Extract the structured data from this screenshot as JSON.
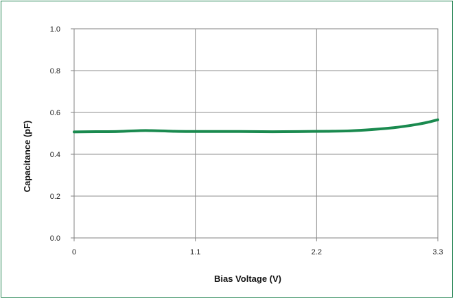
{
  "chart_data": {
    "type": "line",
    "title": "",
    "xlabel": "Bias Voltage (V)",
    "ylabel": "Capacitance (pF)",
    "xlim": [
      0,
      3.3
    ],
    "ylim": [
      0.0,
      1.0
    ],
    "x_ticks": [
      "0",
      "1.1",
      "2.2",
      "3.3"
    ],
    "y_ticks": [
      "0.0",
      "0.2",
      "0.4",
      "0.6",
      "0.8",
      "1.0"
    ],
    "grid": true,
    "series": [
      {
        "color": "#1a8a4f",
        "x": [
          0,
          0.2,
          0.4,
          0.6,
          0.7,
          0.9,
          1.1,
          1.3,
          1.5,
          1.7,
          1.9,
          2.1,
          2.3,
          2.5,
          2.7,
          2.9,
          3.0,
          3.1,
          3.2,
          3.3
        ],
        "y": [
          0.507,
          0.508,
          0.509,
          0.513,
          0.513,
          0.51,
          0.509,
          0.509,
          0.509,
          0.508,
          0.508,
          0.509,
          0.51,
          0.512,
          0.518,
          0.527,
          0.534,
          0.542,
          0.552,
          0.565
        ]
      }
    ]
  }
}
